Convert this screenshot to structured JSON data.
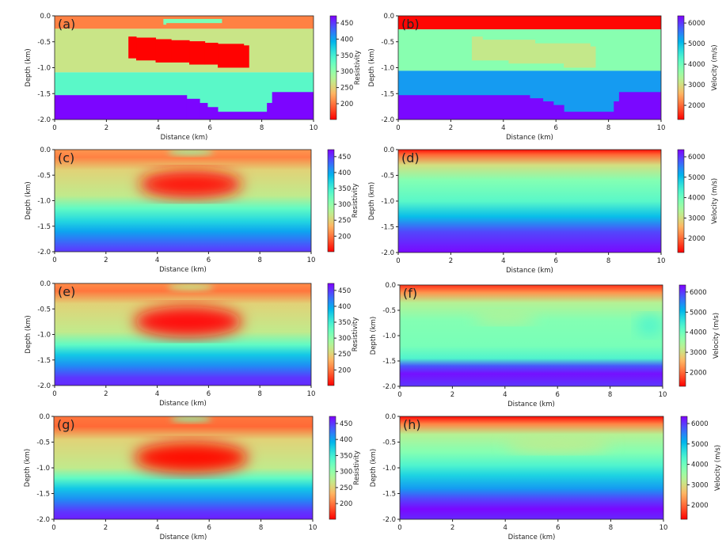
{
  "chart_data": [
    {
      "panel": "(a)",
      "type": "heatmap",
      "kind": "model",
      "quantity": "resistivity",
      "xlabel": "Distance (km)",
      "ylabel": "Depth (km)",
      "xlim": [
        0,
        10
      ],
      "ylim": [
        -2,
        0
      ],
      "xticks": [
        "0",
        "2",
        "4",
        "6",
        "8",
        "10"
      ],
      "yticks": [
        "0.0",
        "-0.5",
        "-1.0",
        "-1.5",
        "-2.0"
      ],
      "colorbar": {
        "label": "Resistivity",
        "range": [
          151,
          472
        ],
        "ticks": [
          "200",
          "250",
          "300",
          "350",
          "400",
          "450"
        ]
      },
      "layers": [
        {
          "top": 0,
          "bottom": -0.25,
          "value": 205
        },
        {
          "top": -0.25,
          "bottom": -1.09,
          "value": 265
        },
        {
          "top": -1.09,
          "bottom": -2.0,
          "value": 335
        }
      ],
      "blocks": [
        {
          "x": [
            4.2,
            6.45
          ],
          "depth": [
            -0.06,
            -0.14
          ],
          "value": 315
        },
        {
          "x": [
            4.2,
            4.3
          ],
          "depth": [
            -0.14,
            -0.17
          ],
          "value": 315
        },
        {
          "x": [
            2.85,
            3.15
          ],
          "depth": [
            -0.4,
            -0.82
          ],
          "value": 152
        },
        {
          "x": [
            3.15,
            3.9
          ],
          "depth": [
            -0.42,
            -0.86
          ],
          "value": 152
        },
        {
          "x": [
            3.9,
            4.5
          ],
          "depth": [
            -0.45,
            -0.9
          ],
          "value": 152
        },
        {
          "x": [
            4.5,
            5.2
          ],
          "depth": [
            -0.47,
            -0.9
          ],
          "value": 152
        },
        {
          "x": [
            5.2,
            5.8
          ],
          "depth": [
            -0.49,
            -0.94
          ],
          "value": 152
        },
        {
          "x": [
            5.8,
            6.3
          ],
          "depth": [
            -0.52,
            -0.94
          ],
          "value": 152
        },
        {
          "x": [
            6.3,
            7.3
          ],
          "depth": [
            -0.54,
            -1.0
          ],
          "value": 152
        },
        {
          "x": [
            7.3,
            7.5
          ],
          "depth": [
            -0.57,
            -1.0
          ],
          "value": 152
        },
        {
          "x": [
            0,
            5.1
          ],
          "depth": [
            -1.53,
            -2
          ],
          "value": 470
        },
        {
          "x": [
            5.1,
            5.6
          ],
          "depth": [
            -1.6,
            -2
          ],
          "value": 470
        },
        {
          "x": [
            5.6,
            5.9
          ],
          "depth": [
            -1.68,
            -2
          ],
          "value": 470
        },
        {
          "x": [
            5.9,
            6.3
          ],
          "depth": [
            -1.76,
            -2
          ],
          "value": 470
        },
        {
          "x": [
            6.3,
            8.2
          ],
          "depth": [
            -1.85,
            -2
          ],
          "value": 470
        },
        {
          "x": [
            8.2,
            8.4
          ],
          "depth": [
            -1.68,
            -2
          ],
          "value": 470
        },
        {
          "x": [
            8.4,
            10
          ],
          "depth": [
            -1.47,
            -2
          ],
          "value": 470
        }
      ]
    },
    {
      "panel": "(b)",
      "type": "heatmap",
      "kind": "model",
      "quantity": "velocity",
      "xlabel": "Distance (km)",
      "ylabel": "Depth (km)",
      "xlim": [
        0,
        10
      ],
      "ylim": [
        -2,
        0
      ],
      "xticks": [
        "0",
        "2",
        "4",
        "6",
        "8",
        "10"
      ],
      "yticks": [
        "0.0",
        "-0.5",
        "-1.0",
        "-1.5",
        "-2.0"
      ],
      "colorbar": {
        "label": "Velocity (m/s)",
        "range": [
          1310,
          6350
        ],
        "ticks": [
          "2000",
          "3000",
          "4000",
          "5000",
          "6000"
        ]
      },
      "layers": [
        {
          "top": 0,
          "bottom": -0.26,
          "value": 1350
        },
        {
          "top": -0.26,
          "bottom": -1.06,
          "value": 3750
        },
        {
          "top": -1.06,
          "bottom": -2.0,
          "value": 5300
        }
      ],
      "blocks": [
        {
          "x": [
            2.8,
            3.2
          ],
          "depth": [
            -0.4,
            -0.86
          ],
          "value": 3150
        },
        {
          "x": [
            3.2,
            4.2
          ],
          "depth": [
            -0.46,
            -0.86
          ],
          "value": 3150
        },
        {
          "x": [
            4.2,
            5.2
          ],
          "depth": [
            -0.46,
            -0.92
          ],
          "value": 3150
        },
        {
          "x": [
            5.2,
            6.3
          ],
          "depth": [
            -0.53,
            -0.92
          ],
          "value": 3150
        },
        {
          "x": [
            6.3,
            7.3
          ],
          "depth": [
            -0.53,
            -1.0
          ],
          "value": 3150
        },
        {
          "x": [
            7.3,
            7.5
          ],
          "depth": [
            -0.59,
            -1.0
          ],
          "value": 3150
        },
        {
          "x": [
            0,
            5.0
          ],
          "depth": [
            -1.53,
            -2
          ],
          "value": 6300
        },
        {
          "x": [
            5.0,
            5.5
          ],
          "depth": [
            -1.59,
            -2
          ],
          "value": 6300
        },
        {
          "x": [
            5.5,
            5.9
          ],
          "depth": [
            -1.65,
            -2
          ],
          "value": 6300
        },
        {
          "x": [
            5.9,
            6.3
          ],
          "depth": [
            -1.72,
            -2
          ],
          "value": 6300
        },
        {
          "x": [
            6.3,
            8.2
          ],
          "depth": [
            -1.85,
            -2
          ],
          "value": 6300
        },
        {
          "x": [
            8.2,
            8.4
          ],
          "depth": [
            -1.65,
            -2
          ],
          "value": 6300
        },
        {
          "x": [
            8.4,
            10
          ],
          "depth": [
            -1.47,
            -2
          ],
          "value": 6300
        }
      ]
    },
    {
      "panel": "(c)",
      "type": "heatmap",
      "kind": "inversion",
      "quantity": "resistivity",
      "xlabel": "Distance (km)",
      "ylabel": "Depth (km)",
      "xlim": [
        0,
        10
      ],
      "ylim": [
        -2,
        0
      ],
      "xticks": [
        "0",
        "2",
        "4",
        "6",
        "8",
        "10"
      ],
      "yticks": [
        "0.0",
        "-0.5",
        "-1.0",
        "-1.5",
        "-2.0"
      ],
      "colorbar": {
        "label": "Resistivity",
        "range": [
          151,
          472
        ],
        "ticks": [
          "200",
          "250",
          "300",
          "350",
          "400",
          "450"
        ]
      },
      "profile": [
        [
          0,
          215
        ],
        [
          -0.15,
          205
        ],
        [
          -0.4,
          250
        ],
        [
          -0.9,
          270
        ],
        [
          -1.15,
          330
        ],
        [
          -1.4,
          370
        ],
        [
          -1.6,
          400
        ],
        [
          -1.9,
          440
        ],
        [
          -2,
          450
        ]
      ],
      "blobs": [
        {
          "x": 5.3,
          "depth": -0.68,
          "rx": 2.0,
          "ry": 0.27,
          "value": 160
        },
        {
          "x": 5.3,
          "depth": -0.05,
          "rx": 0.9,
          "ry": 0.05,
          "value": 300
        }
      ]
    },
    {
      "panel": "(d)",
      "type": "heatmap",
      "kind": "inversion",
      "quantity": "velocity",
      "xlabel": "Distance (km)",
      "ylabel": "Depth (km)",
      "xlim": [
        0,
        10
      ],
      "ylim": [
        -2,
        0
      ],
      "xticks": [
        "0",
        "2",
        "4",
        "6",
        "8",
        "10"
      ],
      "yticks": [
        "0.0",
        "-0.5",
        "-1.0",
        "-1.5",
        "-2.0"
      ],
      "colorbar": {
        "label": "Velocity (m/s)",
        "range": [
          1310,
          6350
        ],
        "ticks": [
          "2000",
          "3000",
          "4000",
          "5000",
          "6000"
        ]
      },
      "profile": [
        [
          0,
          1400
        ],
        [
          -0.1,
          2000
        ],
        [
          -0.3,
          3000
        ],
        [
          -0.6,
          3800
        ],
        [
          -1.0,
          4200
        ],
        [
          -1.3,
          5000
        ],
        [
          -1.6,
          5900
        ],
        [
          -2,
          6300
        ]
      ],
      "blobs": []
    },
    {
      "panel": "(e)",
      "type": "heatmap",
      "kind": "inversion",
      "quantity": "resistivity",
      "xlabel": "Distance (km)",
      "ylabel": "Depth (km)",
      "xlim": [
        0,
        10
      ],
      "ylim": [
        -2,
        0
      ],
      "xticks": [
        "0",
        "2",
        "4",
        "6",
        "8",
        "10"
      ],
      "yticks": [
        "0.0",
        "-0.5",
        "-1.0",
        "-1.5",
        "-2.0"
      ],
      "colorbar": {
        "label": "Resistivity",
        "range": [
          151,
          472
        ],
        "ticks": [
          "200",
          "250",
          "300",
          "350",
          "400",
          "450"
        ]
      },
      "profile": [
        [
          0,
          210
        ],
        [
          -0.15,
          200
        ],
        [
          -0.4,
          250
        ],
        [
          -0.95,
          270
        ],
        [
          -1.2,
          330
        ],
        [
          -1.4,
          380
        ],
        [
          -1.6,
          410
        ],
        [
          -1.85,
          450
        ],
        [
          -2,
          455
        ]
      ],
      "blobs": [
        {
          "x": 5.2,
          "depth": -0.75,
          "rx": 2.1,
          "ry": 0.3,
          "value": 158
        },
        {
          "x": 5.3,
          "depth": -0.07,
          "rx": 0.9,
          "ry": 0.06,
          "value": 270
        }
      ]
    },
    {
      "panel": "(f)",
      "type": "heatmap",
      "kind": "inversion",
      "quantity": "velocity",
      "xlabel": "Distance (km)",
      "ylabel": "Depth (km)",
      "xlim": [
        0,
        10
      ],
      "ylim": [
        -2,
        0
      ],
      "xticks": [
        "0",
        "2",
        "4",
        "6",
        "8",
        "10"
      ],
      "yticks": [
        "0.0",
        "-0.5",
        "-1.0",
        "-1.5",
        "-2.0"
      ],
      "colorbar": {
        "label": "Velocity (m/s)",
        "range": [
          1310,
          6350
        ],
        "ticks": [
          "2000",
          "3000",
          "4000",
          "5000",
          "6000"
        ]
      },
      "profile": [
        [
          0,
          1600
        ],
        [
          -0.15,
          2300
        ],
        [
          -0.35,
          3300
        ],
        [
          -0.7,
          3800
        ],
        [
          -1.2,
          3900
        ],
        [
          -1.45,
          4300
        ],
        [
          -1.6,
          5800
        ],
        [
          -1.75,
          6250
        ],
        [
          -2,
          6000
        ]
      ],
      "blobs": [
        {
          "x": 4,
          "depth": -0.65,
          "rx": 1.2,
          "ry": 0.12,
          "value": 3300
        },
        {
          "x": 9.5,
          "depth": -0.8,
          "rx": 0.5,
          "ry": 0.2,
          "value": 4300
        }
      ]
    },
    {
      "panel": "(g)",
      "type": "heatmap",
      "kind": "inversion",
      "quantity": "resistivity",
      "xlabel": "Distance (km)",
      "ylabel": "Depth (km)",
      "xlim": [
        0,
        10
      ],
      "ylim": [
        -2,
        0
      ],
      "xticks": [
        "0",
        "2",
        "4",
        "6",
        "8",
        "10"
      ],
      "yticks": [
        "0.0",
        "-0.5",
        "-1.0",
        "-1.5",
        "-2.0"
      ],
      "colorbar": {
        "label": "Resistivity",
        "range": [
          151,
          472
        ],
        "ticks": [
          "200",
          "250",
          "300",
          "350",
          "400",
          "450"
        ]
      },
      "profile": [
        [
          0,
          200
        ],
        [
          -0.2,
          195
        ],
        [
          -0.45,
          250
        ],
        [
          -1.0,
          270
        ],
        [
          -1.2,
          330
        ],
        [
          -1.4,
          380
        ],
        [
          -1.6,
          410
        ],
        [
          -1.85,
          450
        ],
        [
          -2,
          460
        ]
      ],
      "blobs": [
        {
          "x": 5.3,
          "depth": -0.8,
          "rx": 2.2,
          "ry": 0.3,
          "value": 155
        },
        {
          "x": 5.3,
          "depth": -0.05,
          "rx": 0.8,
          "ry": 0.05,
          "value": 310
        }
      ]
    },
    {
      "panel": "(h)",
      "type": "heatmap",
      "kind": "inversion",
      "quantity": "velocity",
      "xlabel": "Distance (km)",
      "ylabel": "Depth (km)",
      "xlim": [
        0,
        10
      ],
      "ylim": [
        -2,
        0
      ],
      "xticks": [
        "0",
        "2",
        "4",
        "6",
        "8",
        "10"
      ],
      "yticks": [
        "0.0",
        "-0.5",
        "-1.0",
        "-1.5",
        "-2.0"
      ],
      "colorbar": {
        "label": "Velocity (m/s)",
        "range": [
          1310,
          6350
        ],
        "ticks": [
          "2000",
          "3000",
          "4000",
          "5000",
          "6000"
        ]
      },
      "profile": [
        [
          0,
          1350
        ],
        [
          -0.15,
          2200
        ],
        [
          -0.35,
          3300
        ],
        [
          -0.7,
          3800
        ],
        [
          -0.95,
          4300
        ],
        [
          -1.15,
          4800
        ],
        [
          -1.4,
          5300
        ],
        [
          -1.6,
          5900
        ],
        [
          -1.8,
          6300
        ],
        [
          -2,
          6100
        ]
      ],
      "blobs": [
        {
          "x": 6,
          "depth": -0.55,
          "rx": 2.0,
          "ry": 0.15,
          "value": 3200
        }
      ]
    }
  ]
}
